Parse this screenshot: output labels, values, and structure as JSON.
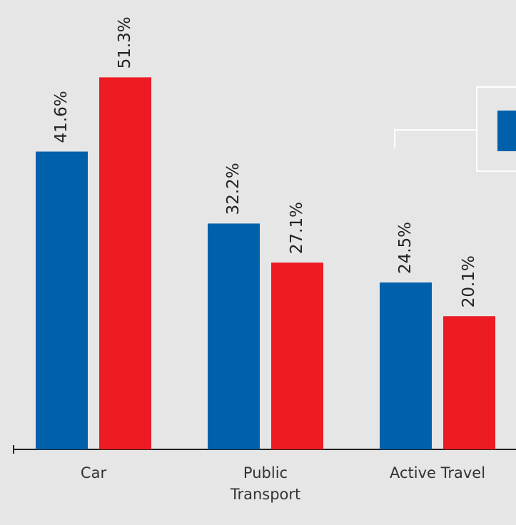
{
  "chart_data": {
    "type": "bar",
    "categories": [
      "Car",
      "Public\nTransport",
      "Active Travel"
    ],
    "series": [
      {
        "color": "#0061ab",
        "values": [
          41.6,
          32.2,
          24.5
        ],
        "value_labels": [
          "41.6%",
          "32.2%",
          "24.5%"
        ]
      },
      {
        "color": "#ed1c24",
        "values": [
          51.3,
          27.1,
          20.1
        ],
        "value_labels": [
          "51.3%",
          "27.1%",
          "20.1%"
        ]
      }
    ],
    "ylim": [
      2.7,
      61.4
    ]
  }
}
